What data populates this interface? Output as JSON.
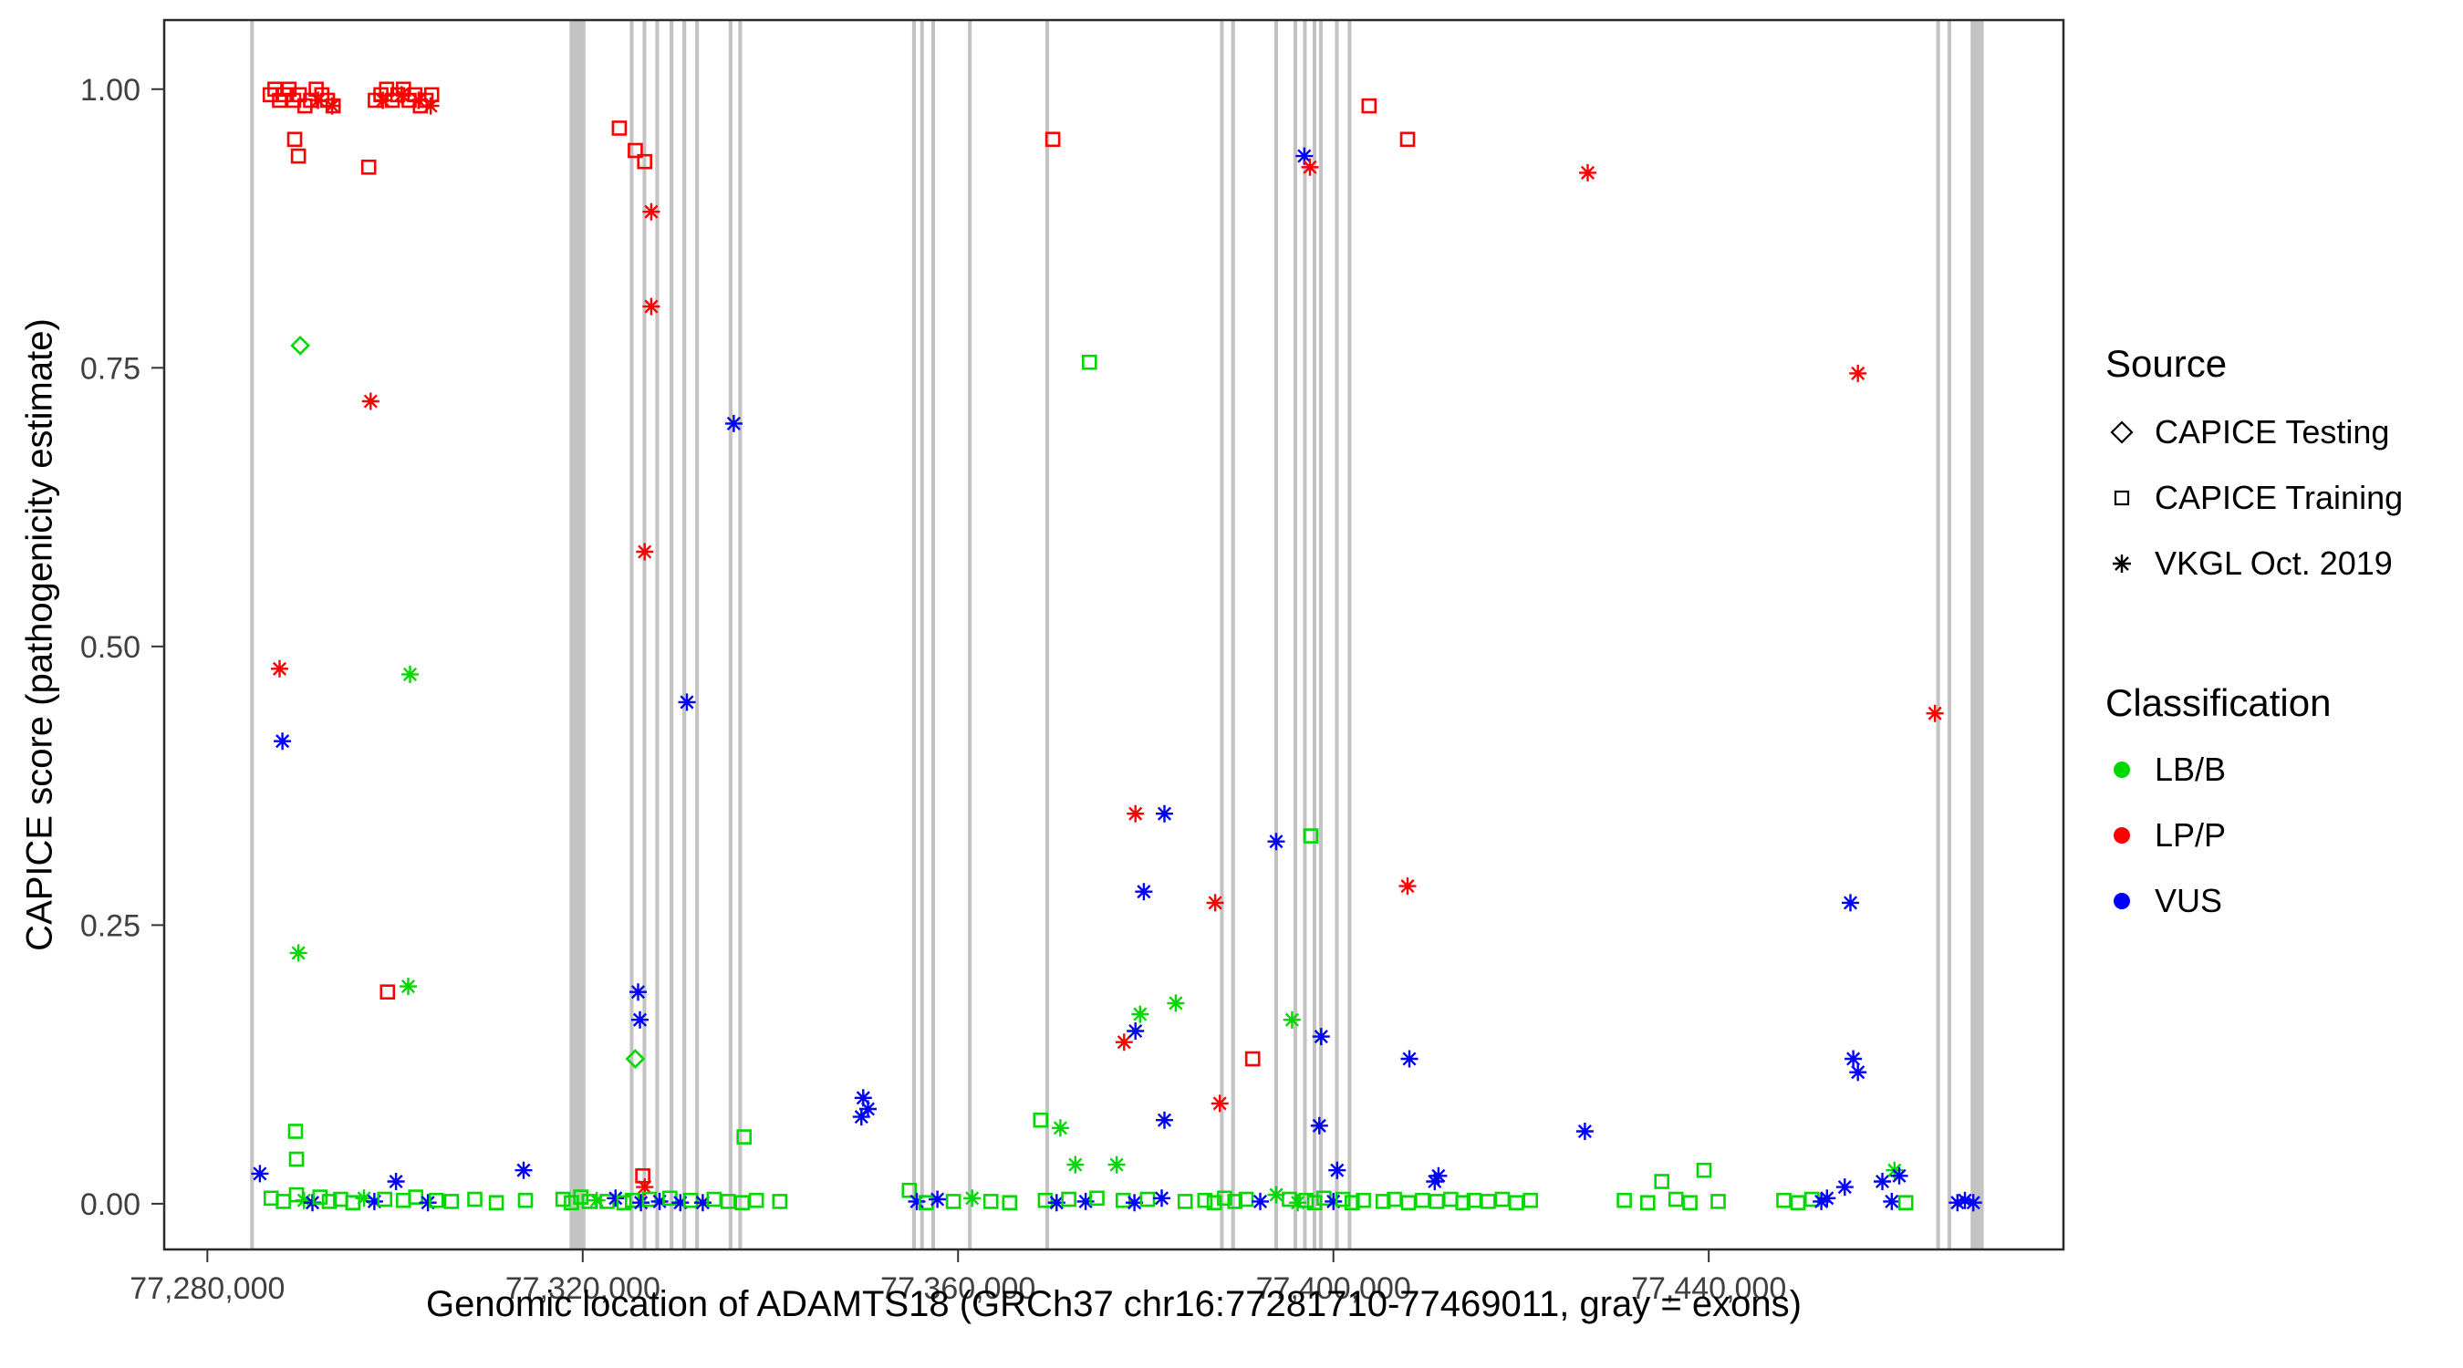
{
  "legend": {
    "source": {
      "title": "Source",
      "items": [
        "CAPICE Testing",
        "CAPICE Training",
        "VKGL Oct. 2019"
      ]
    },
    "classification": {
      "title": "Classification",
      "items": [
        "LB/B",
        "LP/P",
        "VUS"
      ]
    }
  },
  "chart_data": {
    "type": "scatter",
    "title": "",
    "xlabel": "Genomic location of ADAMTS18 (GRCh37 chr16:77281710-77469011, gray = exons)",
    "ylabel": "CAPICE score (pathogenicity estimate)",
    "xlim": [
      77275400,
      77477800
    ],
    "ylim": [
      -0.041,
      1.062
    ],
    "grid": false,
    "legend_position": "right",
    "x_ticks": [
      {
        "v": 77280000,
        "label": "77,280,000"
      },
      {
        "v": 77320000,
        "label": "77,320,000"
      },
      {
        "v": 77360000,
        "label": "77,360,000"
      },
      {
        "v": 77400000,
        "label": "77,400,000"
      },
      {
        "v": 77440000,
        "label": "77,440,000"
      }
    ],
    "y_ticks": [
      {
        "v": 0.0,
        "label": "0.00"
      },
      {
        "v": 0.25,
        "label": "0.25"
      },
      {
        "v": 0.5,
        "label": "0.50"
      },
      {
        "v": 0.75,
        "label": "0.75"
      },
      {
        "v": 1.0,
        "label": "1.00"
      }
    ],
    "colors": {
      "B": "#00D800",
      "P": "#FF0000",
      "V": "#0000FF",
      "exon": "#C3C3C3",
      "axis": "#333333"
    },
    "source_codes": {
      "te": "CAPICE Testing",
      "tr": "CAPICE Training",
      "vk": "VKGL Oct. 2019"
    },
    "class_codes": {
      "B": "LB/B",
      "P": "LP/P",
      "V": "VUS"
    },
    "exons": [
      [
        77284560,
        77284960
      ],
      [
        77318590,
        77320290
      ],
      [
        77325020,
        77325420
      ],
      [
        77326380,
        77326780
      ],
      [
        77327740,
        77328140
      ],
      [
        77329270,
        77329670
      ],
      [
        77330630,
        77331030
      ],
      [
        77331990,
        77332390
      ],
      [
        77335560,
        77335960
      ],
      [
        77336580,
        77336980
      ],
      [
        77355110,
        77355510
      ],
      [
        77355960,
        77356360
      ],
      [
        77357150,
        77357550
      ],
      [
        77361060,
        77361460
      ],
      [
        77369300,
        77369700
      ],
      [
        77387920,
        77388320
      ],
      [
        77389110,
        77389510
      ],
      [
        77393700,
        77394100
      ],
      [
        77395740,
        77396140
      ],
      [
        77396760,
        77397160
      ],
      [
        77397780,
        77398180
      ],
      [
        77398460,
        77398860
      ],
      [
        77400160,
        77400560
      ],
      [
        77401520,
        77401920
      ],
      [
        77464250,
        77464650
      ],
      [
        77465440,
        77465840
      ],
      [
        77467900,
        77469300
      ]
    ],
    "points": [
      [
        77286700,
        0.995,
        "tr",
        "P"
      ],
      [
        77287200,
        1.0,
        "tr",
        "P"
      ],
      [
        77287700,
        0.99,
        "tr",
        "P"
      ],
      [
        77288200,
        0.995,
        "tr",
        "P"
      ],
      [
        77288700,
        1.0,
        "tr",
        "P"
      ],
      [
        77289200,
        0.99,
        "tr",
        "P"
      ],
      [
        77289800,
        0.995,
        "tr",
        "P"
      ],
      [
        77290400,
        0.985,
        "tr",
        "P"
      ],
      [
        77291000,
        0.99,
        "tr",
        "P"
      ],
      [
        77291600,
        1.0,
        "tr",
        "P"
      ],
      [
        77292200,
        0.995,
        "tr",
        "P"
      ],
      [
        77292800,
        0.99,
        "tr",
        "P"
      ],
      [
        77293400,
        0.985,
        "tr",
        "P"
      ],
      [
        77297900,
        0.99,
        "tr",
        "P"
      ],
      [
        77298500,
        0.995,
        "tr",
        "P"
      ],
      [
        77299100,
        1.0,
        "tr",
        "P"
      ],
      [
        77299700,
        0.99,
        "tr",
        "P"
      ],
      [
        77300300,
        0.995,
        "tr",
        "P"
      ],
      [
        77300900,
        1.0,
        "tr",
        "P"
      ],
      [
        77301500,
        0.99,
        "tr",
        "P"
      ],
      [
        77302100,
        0.995,
        "tr",
        "P"
      ],
      [
        77302700,
        0.985,
        "tr",
        "P"
      ],
      [
        77303300,
        0.99,
        "tr",
        "P"
      ],
      [
        77303900,
        0.995,
        "tr",
        "P"
      ],
      [
        77291800,
        0.99,
        "vk",
        "P"
      ],
      [
        77293300,
        0.985,
        "vk",
        "P"
      ],
      [
        77298700,
        0.99,
        "vk",
        "P"
      ],
      [
        77300700,
        0.995,
        "vk",
        "P"
      ],
      [
        77302500,
        0.99,
        "vk",
        "P"
      ],
      [
        77303800,
        0.985,
        "vk",
        "P"
      ],
      [
        77289300,
        0.955,
        "tr",
        "P"
      ],
      [
        77289700,
        0.94,
        "tr",
        "P"
      ],
      [
        77297200,
        0.93,
        "tr",
        "P"
      ],
      [
        77297400,
        0.72,
        "vk",
        "P"
      ],
      [
        77289900,
        0.77,
        "te",
        "B"
      ],
      [
        77287700,
        0.48,
        "vk",
        "P"
      ],
      [
        77288000,
        0.415,
        "vk",
        "V"
      ],
      [
        77289700,
        0.225,
        "vk",
        "B"
      ],
      [
        77301600,
        0.475,
        "vk",
        "B"
      ],
      [
        77301400,
        0.195,
        "vk",
        "B"
      ],
      [
        77299200,
        0.19,
        "tr",
        "P"
      ],
      [
        77289400,
        0.065,
        "tr",
        "B"
      ],
      [
        77289500,
        0.04,
        "tr",
        "B"
      ],
      [
        77285600,
        0.027,
        "vk",
        "V"
      ],
      [
        77286800,
        0.005,
        "tr",
        "B"
      ],
      [
        77288100,
        0.002,
        "tr",
        "B"
      ],
      [
        77289500,
        0.008,
        "tr",
        "B"
      ],
      [
        77290300,
        0.003,
        "vk",
        "B"
      ],
      [
        77291200,
        0.001,
        "vk",
        "V"
      ],
      [
        77292000,
        0.006,
        "tr",
        "B"
      ],
      [
        77293000,
        0.002,
        "tr",
        "B"
      ],
      [
        77294200,
        0.004,
        "tr",
        "B"
      ],
      [
        77295500,
        0.001,
        "tr",
        "B"
      ],
      [
        77296700,
        0.005,
        "vk",
        "B"
      ],
      [
        77297800,
        0.002,
        "vk",
        "V"
      ],
      [
        77298900,
        0.004,
        "tr",
        "B"
      ],
      [
        77300100,
        0.02,
        "vk",
        "V"
      ],
      [
        77300900,
        0.003,
        "tr",
        "B"
      ],
      [
        77302200,
        0.006,
        "tr",
        "B"
      ],
      [
        77303500,
        0.001,
        "vk",
        "V"
      ],
      [
        77304400,
        0.003,
        "tr",
        "B"
      ],
      [
        77306000,
        0.002,
        "tr",
        "B"
      ],
      [
        77308500,
        0.004,
        "tr",
        "B"
      ],
      [
        77310800,
        0.001,
        "tr",
        "B"
      ],
      [
        77313700,
        0.03,
        "vk",
        "V"
      ],
      [
        77313900,
        0.003,
        "tr",
        "B"
      ],
      [
        77317900,
        0.004,
        "tr",
        "B"
      ],
      [
        77318800,
        0.001,
        "tr",
        "B"
      ],
      [
        77319800,
        0.006,
        "tr",
        "B"
      ],
      [
        77320700,
        0.002,
        "tr",
        "B"
      ],
      [
        77321500,
        0.003,
        "vk",
        "B"
      ],
      [
        77323900,
        0.965,
        "tr",
        "P"
      ],
      [
        77325600,
        0.945,
        "tr",
        "P"
      ],
      [
        77326600,
        0.935,
        "tr",
        "P"
      ],
      [
        77327300,
        0.89,
        "vk",
        "P"
      ],
      [
        77327300,
        0.805,
        "vk",
        "P"
      ],
      [
        77326600,
        0.585,
        "vk",
        "P"
      ],
      [
        77331100,
        0.45,
        "vk",
        "V"
      ],
      [
        77336100,
        0.7,
        "vk",
        "V"
      ],
      [
        77325900,
        0.19,
        "vk",
        "V"
      ],
      [
        77326100,
        0.165,
        "vk",
        "V"
      ],
      [
        77325600,
        0.13,
        "te",
        "B"
      ],
      [
        77326400,
        0.025,
        "tr",
        "P"
      ],
      [
        77326600,
        0.015,
        "vk",
        "P"
      ],
      [
        77337200,
        0.06,
        "tr",
        "B"
      ],
      [
        77322600,
        0.002,
        "tr",
        "B"
      ],
      [
        77323500,
        0.005,
        "vk",
        "V"
      ],
      [
        77324400,
        0.001,
        "tr",
        "B"
      ],
      [
        77325300,
        0.003,
        "tr",
        "B"
      ],
      [
        77326200,
        0.001,
        "vk",
        "V"
      ],
      [
        77327100,
        0.004,
        "tr",
        "B"
      ],
      [
        77328200,
        0.002,
        "vk",
        "V"
      ],
      [
        77329300,
        0.005,
        "tr",
        "B"
      ],
      [
        77330400,
        0.001,
        "vk",
        "V"
      ],
      [
        77331500,
        0.003,
        "tr",
        "B"
      ],
      [
        77332800,
        0.001,
        "vk",
        "V"
      ],
      [
        77334000,
        0.004,
        "tr",
        "B"
      ],
      [
        77335500,
        0.002,
        "tr",
        "B"
      ],
      [
        77337000,
        0.001,
        "tr",
        "B"
      ],
      [
        77338500,
        0.003,
        "tr",
        "B"
      ],
      [
        77341000,
        0.002,
        "tr",
        "B"
      ],
      [
        77349900,
        0.095,
        "vk",
        "V"
      ],
      [
        77350400,
        0.085,
        "vk",
        "V"
      ],
      [
        77349700,
        0.078,
        "vk",
        "V"
      ],
      [
        77354800,
        0.012,
        "tr",
        "B"
      ],
      [
        77355600,
        0.002,
        "vk",
        "V"
      ],
      [
        77356600,
        0.001,
        "tr",
        "B"
      ],
      [
        77357800,
        0.004,
        "vk",
        "V"
      ],
      [
        77359500,
        0.002,
        "tr",
        "B"
      ],
      [
        77361500,
        0.005,
        "vk",
        "B"
      ],
      [
        77363500,
        0.002,
        "tr",
        "B"
      ],
      [
        77365500,
        0.001,
        "tr",
        "B"
      ],
      [
        77370100,
        0.955,
        "tr",
        "P"
      ],
      [
        77368800,
        0.075,
        "tr",
        "B"
      ],
      [
        77370900,
        0.068,
        "vk",
        "B"
      ],
      [
        77372500,
        0.035,
        "vk",
        "B"
      ],
      [
        77369300,
        0.003,
        "tr",
        "B"
      ],
      [
        77370500,
        0.001,
        "vk",
        "V"
      ],
      [
        77371800,
        0.004,
        "tr",
        "B"
      ],
      [
        77374000,
        0.755,
        "tr",
        "B"
      ],
      [
        77373600,
        0.002,
        "vk",
        "V"
      ],
      [
        77374800,
        0.005,
        "tr",
        "B"
      ],
      [
        77378900,
        0.35,
        "vk",
        "P"
      ],
      [
        77382000,
        0.35,
        "vk",
        "V"
      ],
      [
        77379800,
        0.28,
        "vk",
        "V"
      ],
      [
        77377700,
        0.145,
        "vk",
        "P"
      ],
      [
        77378900,
        0.155,
        "vk",
        "V"
      ],
      [
        77379400,
        0.17,
        "vk",
        "B"
      ],
      [
        77383200,
        0.18,
        "vk",
        "B"
      ],
      [
        77382000,
        0.075,
        "vk",
        "V"
      ],
      [
        77376900,
        0.035,
        "vk",
        "B"
      ],
      [
        77377600,
        0.003,
        "tr",
        "B"
      ],
      [
        77378800,
        0.001,
        "vk",
        "V"
      ],
      [
        77380200,
        0.004,
        "tr",
        "B"
      ],
      [
        77381700,
        0.005,
        "vk",
        "V"
      ],
      [
        77384200,
        0.002,
        "tr",
        "B"
      ],
      [
        77387400,
        0.27,
        "vk",
        "P"
      ],
      [
        77387900,
        0.09,
        "vk",
        "P"
      ],
      [
        77391400,
        0.13,
        "tr",
        "P"
      ],
      [
        77393900,
        0.325,
        "vk",
        "V"
      ],
      [
        77386300,
        0.003,
        "tr",
        "B"
      ],
      [
        77387300,
        0.001,
        "tr",
        "B"
      ],
      [
        77388400,
        0.005,
        "tr",
        "B"
      ],
      [
        77389500,
        0.002,
        "tr",
        "B"
      ],
      [
        77390700,
        0.004,
        "tr",
        "B"
      ],
      [
        77392200,
        0.002,
        "vk",
        "V"
      ],
      [
        77393900,
        0.008,
        "vk",
        "B"
      ],
      [
        77396900,
        0.94,
        "vk",
        "V"
      ],
      [
        77397500,
        0.93,
        "vk",
        "P"
      ],
      [
        77403800,
        0.985,
        "tr",
        "P"
      ],
      [
        77397600,
        0.33,
        "tr",
        "B"
      ],
      [
        77395600,
        0.165,
        "vk",
        "B"
      ],
      [
        77398700,
        0.15,
        "vk",
        "V"
      ],
      [
        77398500,
        0.07,
        "vk",
        "V"
      ],
      [
        77400400,
        0.03,
        "vk",
        "V"
      ],
      [
        77395300,
        0.004,
        "tr",
        "B"
      ],
      [
        77396200,
        0.001,
        "vk",
        "B"
      ],
      [
        77397100,
        0.003,
        "tr",
        "B"
      ],
      [
        77398000,
        0.001,
        "tr",
        "B"
      ],
      [
        77399000,
        0.005,
        "tr",
        "B"
      ],
      [
        77400000,
        0.002,
        "vk",
        "V"
      ],
      [
        77401000,
        0.004,
        "tr",
        "B"
      ],
      [
        77402000,
        0.001,
        "tr",
        "B"
      ],
      [
        77403200,
        0.003,
        "tr",
        "B"
      ],
      [
        77407900,
        0.955,
        "tr",
        "P"
      ],
      [
        77407900,
        0.285,
        "vk",
        "P"
      ],
      [
        77408100,
        0.13,
        "vk",
        "V"
      ],
      [
        77405300,
        0.002,
        "tr",
        "B"
      ],
      [
        77406500,
        0.004,
        "tr",
        "B"
      ],
      [
        77408000,
        0.001,
        "tr",
        "B"
      ],
      [
        77409500,
        0.003,
        "tr",
        "B"
      ],
      [
        77410800,
        0.02,
        "vk",
        "V"
      ],
      [
        77411200,
        0.025,
        "vk",
        "V"
      ],
      [
        77411000,
        0.002,
        "tr",
        "B"
      ],
      [
        77412500,
        0.004,
        "tr",
        "B"
      ],
      [
        77413800,
        0.001,
        "tr",
        "B"
      ],
      [
        77415000,
        0.003,
        "tr",
        "B"
      ],
      [
        77416500,
        0.002,
        "tr",
        "B"
      ],
      [
        77418000,
        0.004,
        "tr",
        "B"
      ],
      [
        77419500,
        0.001,
        "tr",
        "B"
      ],
      [
        77421000,
        0.003,
        "tr",
        "B"
      ],
      [
        77427100,
        0.925,
        "vk",
        "P"
      ],
      [
        77426800,
        0.065,
        "vk",
        "V"
      ],
      [
        77431000,
        0.003,
        "tr",
        "B"
      ],
      [
        77433500,
        0.001,
        "tr",
        "B"
      ],
      [
        77435000,
        0.02,
        "tr",
        "B"
      ],
      [
        77436500,
        0.004,
        "tr",
        "B"
      ],
      [
        77438000,
        0.001,
        "tr",
        "B"
      ],
      [
        77439500,
        0.03,
        "tr",
        "B"
      ],
      [
        77441000,
        0.002,
        "tr",
        "B"
      ],
      [
        77448000,
        0.003,
        "tr",
        "B"
      ],
      [
        77449500,
        0.001,
        "tr",
        "B"
      ],
      [
        77451000,
        0.004,
        "tr",
        "B"
      ],
      [
        77452000,
        0.002,
        "vk",
        "V"
      ],
      [
        77452600,
        0.005,
        "vk",
        "V"
      ],
      [
        77455900,
        0.745,
        "vk",
        "P"
      ],
      [
        77455100,
        0.27,
        "vk",
        "V"
      ],
      [
        77455400,
        0.13,
        "vk",
        "V"
      ],
      [
        77455900,
        0.118,
        "vk",
        "V"
      ],
      [
        77454500,
        0.015,
        "vk",
        "V"
      ],
      [
        77458500,
        0.02,
        "vk",
        "V"
      ],
      [
        77459800,
        0.03,
        "vk",
        "B"
      ],
      [
        77460300,
        0.025,
        "vk",
        "V"
      ],
      [
        77459500,
        0.002,
        "vk",
        "V"
      ],
      [
        77461000,
        0.001,
        "tr",
        "B"
      ],
      [
        77464100,
        0.44,
        "vk",
        "P"
      ],
      [
        77466500,
        0.001,
        "vk",
        "V"
      ],
      [
        77467300,
        0.003,
        "vk",
        "V"
      ],
      [
        77468200,
        0.001,
        "vk",
        "V"
      ]
    ]
  }
}
